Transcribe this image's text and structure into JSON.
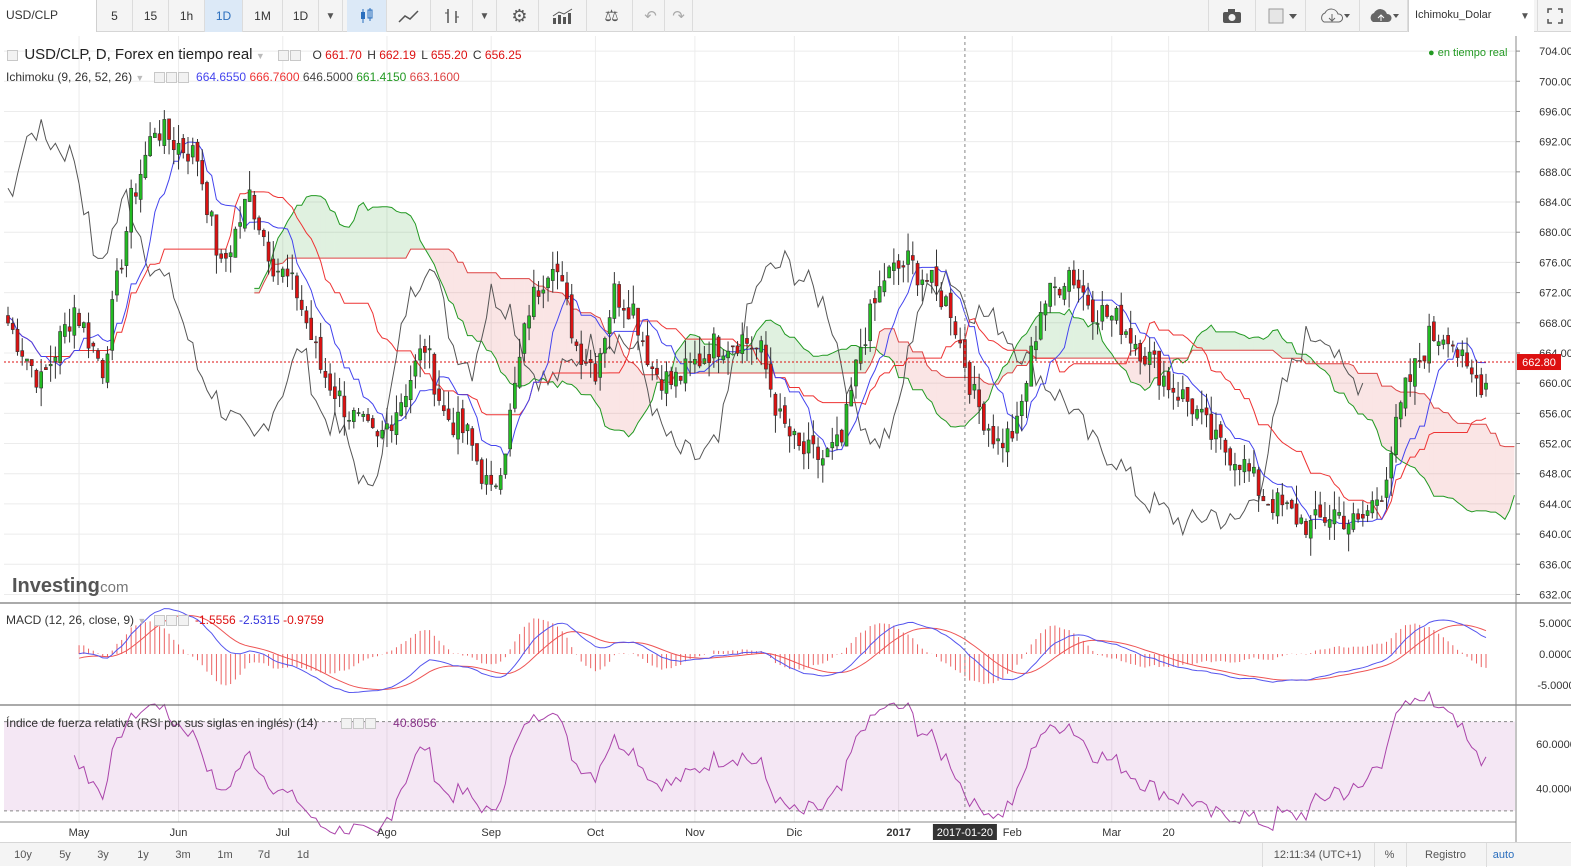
{
  "toolbar": {
    "symbol": "USD/CLP",
    "intervals": [
      "5",
      "15",
      "1h",
      "1D",
      "1M",
      "1D"
    ],
    "active_interval_index": 3,
    "template_name": "Ichimoku_Dolar",
    "icons": [
      "candles-icon",
      "line-chart-icon",
      "bars-icon",
      "settings-icon",
      "indicators-icon",
      "compare-icon",
      "undo-icon",
      "redo-icon",
      "camera-icon",
      "color-box-icon",
      "cloud-download-icon",
      "cloud-upload-icon",
      "fullscreen-icon"
    ]
  },
  "legend": {
    "main_title": "USD/CLP, D, Forex en tiempo real",
    "ohlc": {
      "o_label": "O",
      "o": "661.70",
      "h_label": "H",
      "h": "662.19",
      "l_label": "L",
      "l": "655.20",
      "c_label": "C",
      "c": "656.25"
    },
    "ichimoku_label": "Ichimoku (9, 26, 52, 26)",
    "ichimoku_values": [
      "664.6550",
      "666.7600",
      "646.5000",
      "661.4150",
      "663.1600"
    ],
    "live_label": "en tiempo real",
    "macd_label": "MACD (12, 26, close, 9)",
    "macd_values": [
      "-1.5556",
      "-2.5315",
      "-0.9759"
    ],
    "rsi_label": "Índice de fuerza relativa (RSI por sus siglas en inglés) (14)",
    "rsi_value": "40.8056"
  },
  "watermark": {
    "brand": "Investing",
    "suffix": ".com"
  },
  "crosshair_date": "2017-01-20",
  "bottombar": {
    "ranges": [
      "10y",
      "5y",
      "3y",
      "1y",
      "3m",
      "1m",
      "7d",
      "1d"
    ],
    "clock": "12:11:34 (UTC+1)",
    "percent": "%",
    "log": "Registro",
    "auto": "auto"
  },
  "colors": {
    "up": "#22bb22",
    "down": "#dd1111",
    "tenkan": "#4444ee",
    "kijun": "#ee3333",
    "chikou": "#555555",
    "span_a": "#229922",
    "span_b": "#dd4444",
    "macd": "#5555ee",
    "signal": "#ee5555",
    "rsi": "#aa44aa",
    "accent": "#2a6ebd"
  },
  "chart_data": [
    {
      "type": "candlestick",
      "title": "USD/CLP, D, Forex en tiempo real",
      "x_ticks": [
        "May",
        "Jun",
        "Jul",
        "Ago",
        "Sep",
        "Oct",
        "Nov",
        "Dic",
        "2017",
        "Feb",
        "Mar",
        "20"
      ],
      "y_ticks": [
        "704.00",
        "700.00",
        "696.00",
        "692.00",
        "688.00",
        "684.00",
        "680.00",
        "676.00",
        "672.00",
        "668.00",
        "664.00",
        "660.00",
        "656.00",
        "652.00",
        "648.00",
        "644.00",
        "640.00",
        "636.00",
        "632.00"
      ],
      "ylim": [
        631,
        706
      ],
      "last_price": "662.80",
      "anchors": [
        [
          0,
          668
        ],
        [
          7,
          660
        ],
        [
          14,
          670
        ],
        [
          20,
          662
        ],
        [
          26,
          684
        ],
        [
          31,
          694
        ],
        [
          35,
          692
        ],
        [
          40,
          690
        ],
        [
          45,
          675
        ],
        [
          51,
          685
        ],
        [
          56,
          676
        ],
        [
          61,
          672
        ],
        [
          66,
          662
        ],
        [
          72,
          656
        ],
        [
          78,
          652
        ],
        [
          83,
          658
        ],
        [
          88,
          665
        ],
        [
          92,
          656
        ],
        [
          97,
          653
        ],
        [
          102,
          645
        ],
        [
          105,
          652
        ],
        [
          110,
          670
        ],
        [
          115,
          677
        ],
        [
          120,
          665
        ],
        [
          124,
          662
        ],
        [
          128,
          672
        ],
        [
          132,
          670
        ],
        [
          136,
          662
        ],
        [
          140,
          660
        ],
        [
          144,
          662
        ],
        [
          149,
          665
        ],
        [
          155,
          666
        ],
        [
          159,
          664
        ],
        [
          163,
          655
        ],
        [
          167,
          651
        ],
        [
          172,
          650
        ],
        [
          176,
          652
        ],
        [
          180,
          665
        ],
        [
          185,
          674
        ],
        [
          190,
          676
        ],
        [
          195,
          673
        ],
        [
          199,
          670
        ],
        [
          204,
          658
        ],
        [
          209,
          652
        ],
        [
          213,
          654
        ],
        [
          218,
          670
        ],
        [
          224,
          675
        ],
        [
          229,
          670
        ],
        [
          235,
          668
        ],
        [
          240,
          664
        ],
        [
          245,
          660
        ],
        [
          250,
          657
        ],
        [
          255,
          652
        ],
        [
          260,
          650
        ],
        [
          265,
          645
        ],
        [
          270,
          643
        ],
        [
          275,
          641
        ],
        [
          280,
          643
        ],
        [
          285,
          641
        ],
        [
          290,
          646
        ],
        [
          295,
          659
        ],
        [
          300,
          666
        ],
        [
          304,
          667
        ],
        [
          308,
          661
        ],
        [
          312,
          660
        ]
      ],
      "series": [
        {
          "name": "Ichimoku (9, 26, 52, 26)",
          "values": [
            "664.6550",
            "666.7600",
            "646.5000",
            "661.4150",
            "663.1600"
          ]
        }
      ]
    },
    {
      "type": "line",
      "title": "MACD (12, 26, close, 9)",
      "y_ticks": [
        "5.0000",
        "0.0000",
        "-5.0000"
      ],
      "values": [
        "-1.5556",
        "-2.5315",
        "-0.9759"
      ]
    },
    {
      "type": "line",
      "title": "Índice de fuerza relativa (RSI por sus siglas en inglés) (14)",
      "y_ticks": [
        "60.0000",
        "40.0000"
      ],
      "levels": [
        70,
        30
      ],
      "value": "40.8056"
    }
  ]
}
